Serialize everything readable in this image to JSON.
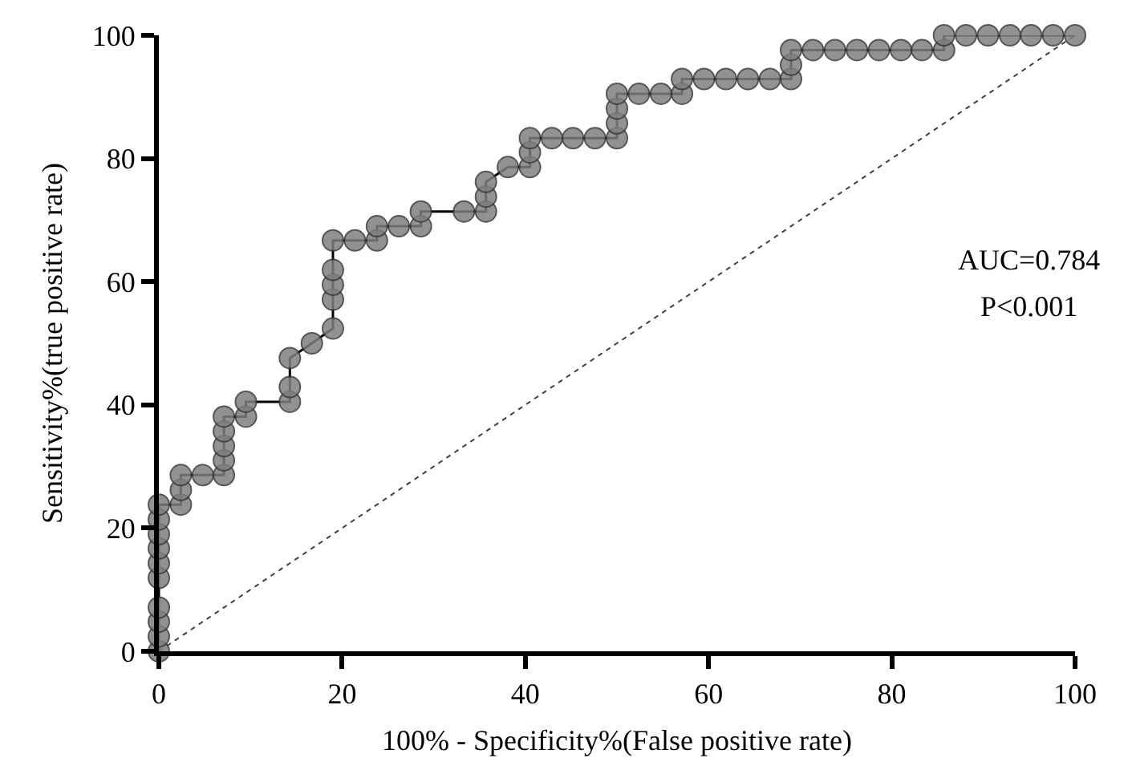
{
  "chart_data": {
    "type": "line",
    "xlabel": "100% - Specificity%(False positive rate)",
    "ylabel": "Sensitivity%(true positive rate)",
    "annotations": [
      "AUC=0.784",
      "P<0.001"
    ],
    "xlim": [
      0,
      100
    ],
    "xticks": [
      0,
      20,
      40,
      60,
      80,
      100
    ],
    "ylim": [
      0,
      100
    ],
    "yticks": [
      0,
      20,
      40,
      60,
      80,
      100
    ],
    "grid": false,
    "series": [
      {
        "color": "#7f7f7f",
        "marker": "circle",
        "line_style": "solid",
        "x": [
          0,
          0,
          0,
          0,
          0,
          0,
          0,
          0,
          0,
          0,
          2.4,
          2.4,
          2.4,
          4.8,
          7.1,
          7.1,
          7.1,
          7.1,
          7.1,
          9.5,
          9.5,
          14.3,
          14.3,
          14.3,
          16.7,
          19,
          19,
          19,
          19,
          19,
          21.4,
          23.8,
          23.8,
          26.2,
          28.6,
          28.6,
          33.3,
          35.7,
          35.7,
          35.7,
          38.1,
          40.5,
          40.5,
          40.5,
          42.9,
          45.2,
          47.6,
          50,
          50,
          50,
          50,
          52.4,
          54.8,
          57.1,
          57.1,
          59.5,
          61.9,
          64.3,
          66.7,
          69,
          69,
          69,
          71.4,
          73.8,
          76.2,
          78.6,
          81,
          83.3,
          85.7,
          85.7,
          88.1,
          90.5,
          92.9,
          95.2,
          97.6,
          100
        ],
        "values": [
          0,
          2.4,
          4.8,
          7.1,
          11.9,
          14.3,
          16.7,
          19,
          21.4,
          23.8,
          23.8,
          26.2,
          28.6,
          28.6,
          28.6,
          31,
          33.3,
          35.7,
          38.1,
          38.1,
          40.5,
          40.5,
          42.9,
          47.6,
          50,
          52.4,
          57.1,
          59.5,
          61.9,
          66.7,
          66.7,
          66.7,
          69,
          69,
          69,
          71.4,
          71.4,
          71.4,
          73.8,
          76.2,
          78.6,
          78.6,
          81,
          83.3,
          83.3,
          83.3,
          83.3,
          83.3,
          85.7,
          88.1,
          90.5,
          90.5,
          90.5,
          90.5,
          92.9,
          92.9,
          92.9,
          92.9,
          92.9,
          92.9,
          95.2,
          97.6,
          97.6,
          97.6,
          97.6,
          97.6,
          97.6,
          97.6,
          97.6,
          100,
          100,
          100,
          100,
          100,
          100,
          100
        ]
      },
      {
        "color": "#404040",
        "marker": "none",
        "line_style": "dotted",
        "x": [
          0,
          100
        ],
        "values": [
          0,
          100
        ]
      }
    ]
  }
}
